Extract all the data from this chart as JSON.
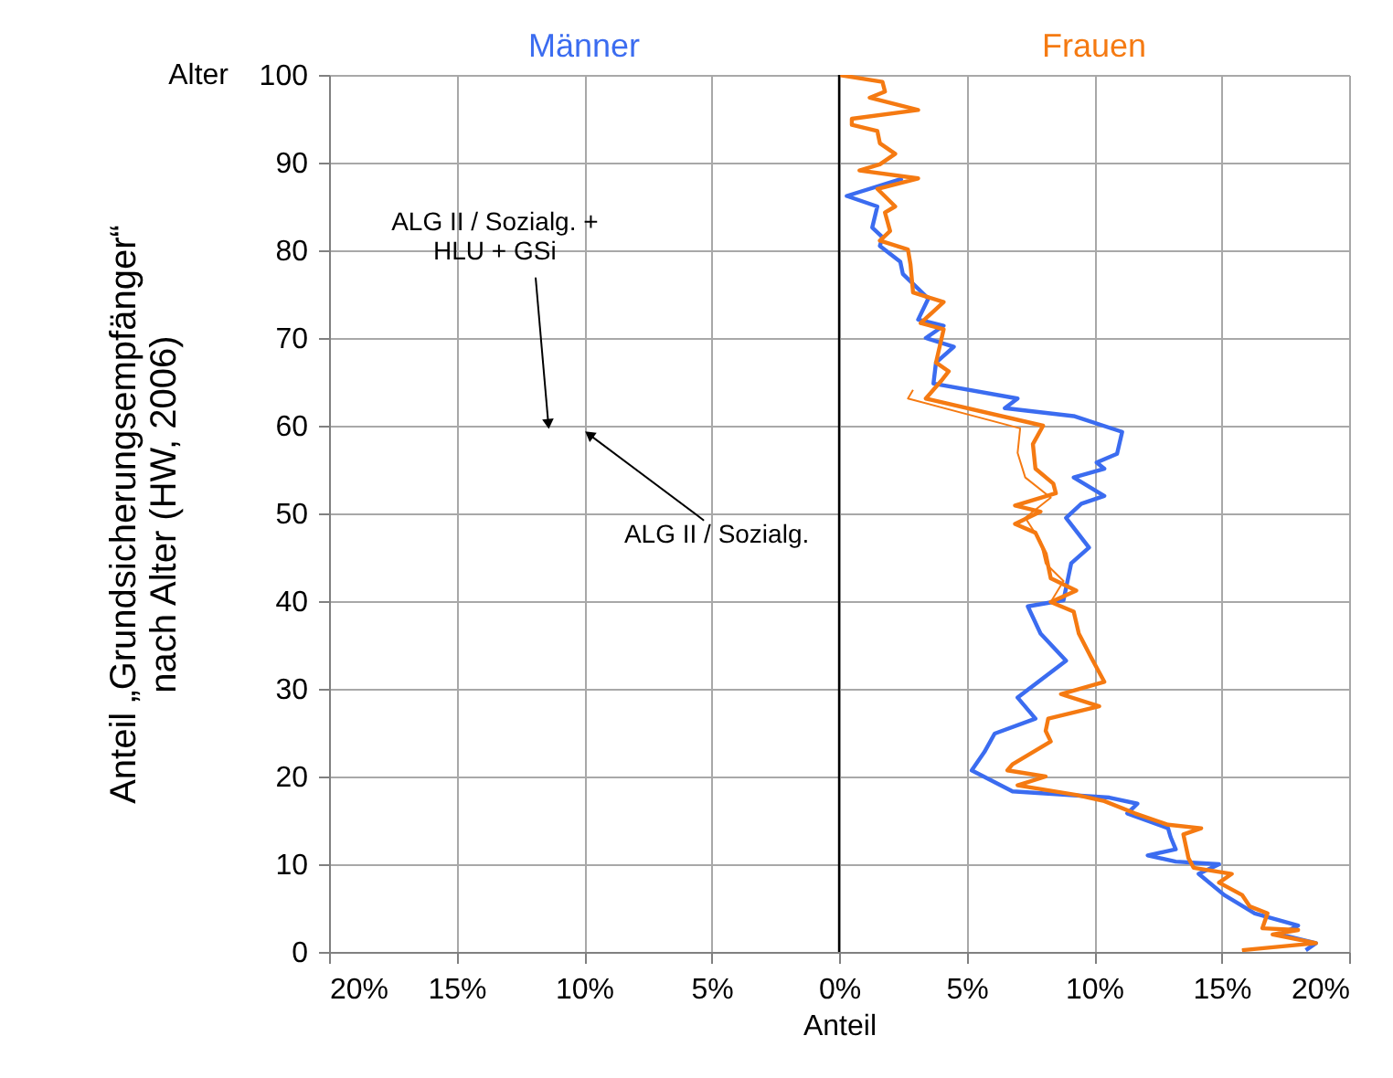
{
  "chart_data": {
    "type": "line",
    "xlabel": "Anteil",
    "ylabel": "Anteil „Grundsicherungsempfänger“\nnach Alter (HW, 2006)",
    "annotations": [
      "Alter",
      {
        "text": "ALG II / Sozialg. +\nHLU + GSi",
        "x": -11.4,
        "y": 60.2
      },
      {
        "text": "ALG II / Sozialg.",
        "x": -9.8,
        "y": 59.0
      }
    ],
    "xlim": [
      -20,
      20
    ],
    "xticks": [
      {
        "value": -20,
        "label": "20%"
      },
      {
        "value": -15,
        "label": "15%"
      },
      {
        "value": -10,
        "label": "10%"
      },
      {
        "value": -5,
        "label": "5%"
      },
      {
        "value": 0,
        "label": "0%"
      },
      {
        "value": 5,
        "label": "5%"
      },
      {
        "value": 10,
        "label": "10%"
      },
      {
        "value": 15,
        "label": "15%"
      },
      {
        "value": 20,
        "label": "20%"
      }
    ],
    "ylim": [
      0,
      100
    ],
    "yticks": [
      0,
      10,
      20,
      30,
      40,
      50,
      60,
      70,
      80,
      90,
      100
    ],
    "grid": true,
    "legend": "top",
    "series": [
      {
        "name": "Männer",
        "color": "#3b6cf0",
        "x": [
          2.5,
          0.3,
          1.5,
          1.3,
          1.7,
          1.6,
          2.4,
          2.5,
          3.5,
          3.1,
          4.1,
          3.4,
          4.5,
          3.8,
          3.7,
          7.0,
          6.5,
          9.2,
          11.1,
          10.9,
          10.1,
          10.4,
          9.2,
          10.4,
          9.5,
          8.9,
          9.8,
          9.1,
          8.8,
          7.4,
          7.9,
          8.9,
          7.0,
          7.7,
          6.1,
          5.7,
          5.2,
          6.8,
          10.6,
          11.7,
          11.3,
          12.9,
          13.0,
          13.2,
          12.1,
          13.2,
          14.9,
          14.1,
          15.1,
          16.3,
          18.0,
          17.3,
          18.7,
          18.3
        ],
        "values": [
          88.2,
          86.2,
          85.0,
          82.6,
          81.5,
          80.5,
          78.7,
          77.3,
          74.5,
          72.1,
          71.4,
          70.0,
          69.0,
          67.2,
          64.8,
          63.1,
          62.0,
          61.1,
          59.3,
          56.8,
          55.8,
          55.1,
          54.1,
          52.0,
          51.1,
          49.5,
          46.1,
          44.3,
          40.1,
          39.4,
          36.3,
          33.2,
          29.0,
          26.6,
          24.9,
          22.8,
          20.7,
          18.3,
          17.6,
          16.9,
          15.8,
          14.1,
          13.1,
          11.7,
          11.0,
          10.3,
          10.0,
          8.9,
          6.5,
          4.4,
          3.0,
          2.0,
          1.0,
          0.2
        ]
      },
      {
        "name": "Frauen",
        "color": "#f57a12",
        "x": [
          0.0,
          1.7,
          1.8,
          1.2,
          3.1,
          0.5,
          0.5,
          1.5,
          1.6,
          2.2,
          1.6,
          0.8,
          3.1,
          1.5,
          2.2,
          1.8,
          2.0,
          1.6,
          2.7,
          2.8,
          2.9,
          4.1,
          3.2,
          4.1,
          3.8,
          4.3,
          4.0,
          3.4,
          8.0,
          7.6,
          7.7,
          8.4,
          8.5,
          6.9,
          7.9,
          6.9,
          7.7,
          8.1,
          8.3,
          9.3,
          8.3,
          9.2,
          9.4,
          9.9,
          10.4,
          8.7,
          10.2,
          8.2,
          8.1,
          8.3,
          6.8,
          6.6,
          8.1,
          7.0,
          9.3,
          10.4,
          11.6,
          12.9,
          14.2,
          13.5,
          13.7,
          13.9,
          15.4,
          14.9,
          15.8,
          16.1,
          16.8,
          16.6,
          18.0,
          17.0,
          18.7,
          15.8
        ],
        "values": [
          100.0,
          99.2,
          98.1,
          97.4,
          96.0,
          95.0,
          94.3,
          93.6,
          92.2,
          91.0,
          89.8,
          89.1,
          88.2,
          87.0,
          85.0,
          84.3,
          82.2,
          81.1,
          80.1,
          78.4,
          75.2,
          74.1,
          71.7,
          71.0,
          67.2,
          66.2,
          65.1,
          63.1,
          60.0,
          57.9,
          55.1,
          53.4,
          52.3,
          50.9,
          50.2,
          48.8,
          47.8,
          45.4,
          42.6,
          41.2,
          39.9,
          38.8,
          36.3,
          33.5,
          30.8,
          29.4,
          28.0,
          26.6,
          25.2,
          24.0,
          21.4,
          20.7,
          20.0,
          19.0,
          17.9,
          17.2,
          15.8,
          14.5,
          14.1,
          13.4,
          10.7,
          9.6,
          8.9,
          7.9,
          6.5,
          5.2,
          4.4,
          2.7,
          2.5,
          2.0,
          1.0,
          0.2
        ]
      },
      {
        "color": "#f57a12",
        "x": [
          2.9,
          2.7,
          7.1,
          7.0,
          7.3,
          8.3,
          7.3,
          7.9,
          8.1,
          8.8,
          8.3,
          9.2,
          9.4,
          9.9,
          10.4,
          8.7,
          10.2,
          8.2,
          8.1,
          8.3,
          6.8,
          6.6,
          8.1,
          7.0,
          9.3,
          10.4,
          11.6,
          12.9,
          14.2,
          13.5,
          13.7,
          13.9,
          15.4,
          14.9,
          15.8,
          16.1,
          16.8,
          16.6,
          18.0,
          17.0,
          18.7,
          15.8
        ],
        "values": [
          64.1,
          63.1,
          59.7,
          56.9,
          54.1,
          51.8,
          49.5,
          46.8,
          44.3,
          42.3,
          39.9,
          38.8,
          36.3,
          33.5,
          30.8,
          29.4,
          28.0,
          26.6,
          25.2,
          24.0,
          21.4,
          20.7,
          20.0,
          19.0,
          17.9,
          17.2,
          15.8,
          14.5,
          14.1,
          13.4,
          10.7,
          9.6,
          8.9,
          7.9,
          6.5,
          5.2,
          4.4,
          2.7,
          2.5,
          2.0,
          1.0,
          0.2
        ]
      }
    ]
  }
}
